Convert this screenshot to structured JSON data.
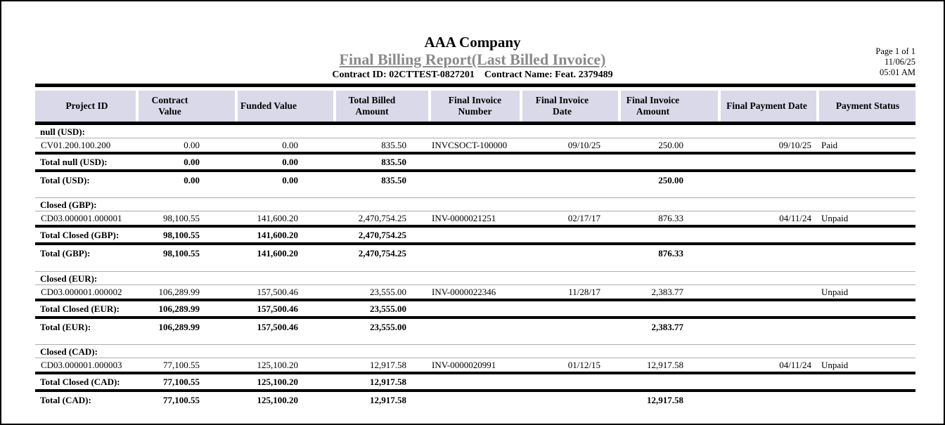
{
  "report": {
    "company": "AAA Company",
    "title": "Final Billing Report(Last Billed Invoice)",
    "contract_id": "Contract ID: 02CTTEST-0827201",
    "contract_name": "Contract Name: Feat. 2379489",
    "page_info": "Page 1 of 1",
    "date": "11/06/25",
    "time": "05:01 AM"
  },
  "colors": {
    "header_bg": "#d9d9ea",
    "title_gray": "#8a8a8a",
    "rule_black": "#000000",
    "thin_line_gray": "#adadad"
  },
  "table": {
    "columns": [
      "Project ID",
      "Contract Value",
      "Funded Value",
      "Total Billed Amount",
      "Final Invoice Number",
      "Final Invoice Date",
      "Final Invoice Amount",
      "Final Payment Date",
      "Payment Status"
    ],
    "groups": [
      {
        "label": "null (USD):",
        "rows": [
          [
            "CV01.200.100.200",
            "0.00",
            "0.00",
            "835.50",
            "INVCSOCT-100000",
            "09/10/25",
            "250.00",
            "09/10/25",
            "Paid"
          ]
        ],
        "group_total": {
          "label": "Total null (USD):",
          "values": [
            "0.00",
            "0.00",
            "835.50"
          ]
        },
        "currency_total": {
          "label": "Total (USD):",
          "values": [
            "0.00",
            "0.00",
            "835.50"
          ],
          "final_invoice_amount": "250.00"
        }
      },
      {
        "label": "Closed (GBP):",
        "rows": [
          [
            "CD03.000001.000001",
            "98,100.55",
            "141,600.20",
            "2,470,754.25",
            "INV-0000021251",
            "02/17/17",
            "876.33",
            "04/11/24",
            "Unpaid"
          ]
        ],
        "group_total": {
          "label": "Total Closed (GBP):",
          "values": [
            "98,100.55",
            "141,600.20",
            "2,470,754.25"
          ]
        },
        "currency_total": {
          "label": "Total (GBP):",
          "values": [
            "98,100.55",
            "141,600.20",
            "2,470,754.25"
          ],
          "final_invoice_amount": "876.33"
        }
      },
      {
        "label": "Closed (EUR):",
        "rows": [
          [
            "CD03.000001.000002",
            "106,289.99",
            "157,500.46",
            "23,555.00",
            "INV-0000022346",
            "11/28/17",
            "2,383.77",
            "",
            "Unpaid"
          ]
        ],
        "group_total": {
          "label": "Total Closed (EUR):",
          "values": [
            "106,289.99",
            "157,500.46",
            "23,555.00"
          ]
        },
        "currency_total": {
          "label": "Total (EUR):",
          "values": [
            "106,289.99",
            "157,500.46",
            "23,555.00"
          ],
          "final_invoice_amount": "2,383.77"
        }
      },
      {
        "label": "Closed (CAD):",
        "rows": [
          [
            "CD03.000001.000003",
            "77,100.55",
            "125,100.20",
            "12,917.58",
            "INV-0000020991",
            "01/12/15",
            "12,917.58",
            "04/11/24",
            "Unpaid"
          ]
        ],
        "group_total": {
          "label": "Total Closed (CAD):",
          "values": [
            "77,100.55",
            "125,100.20",
            "12,917.58"
          ]
        },
        "currency_total": {
          "label": "Total (CAD):",
          "values": [
            "77,100.55",
            "125,100.20",
            "12,917.58"
          ],
          "final_invoice_amount": "12,917.58"
        }
      }
    ]
  }
}
